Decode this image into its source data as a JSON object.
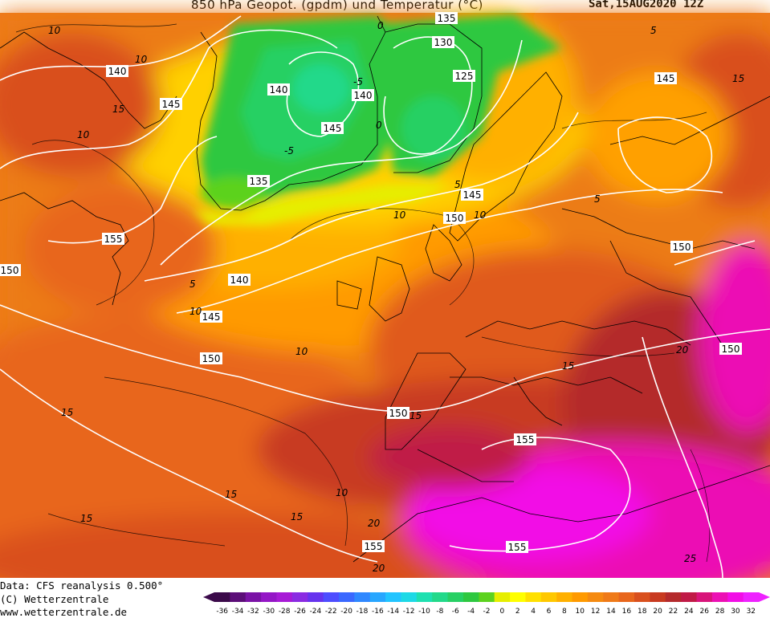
{
  "header": {
    "title": "850 hPa Geopot. (gpdm) und Temperatur (°C)",
    "date": "Sat,15AUG2020 12Z"
  },
  "footer": {
    "data_source": "Data: CFS reanalysis 0.500°",
    "copyright": "(C) Wetterzentrale",
    "website": "www.wetterzentrale.de"
  },
  "colors": {
    "contour_geopotential": "#ffffff",
    "coastline": "#000000"
  },
  "legend": {
    "values": [
      -36,
      -34,
      -32,
      -30,
      -28,
      -26,
      -24,
      -22,
      -20,
      -18,
      -16,
      -14,
      -12,
      -10,
      -8,
      -6,
      -4,
      -2,
      0,
      2,
      4,
      6,
      8,
      10,
      12,
      14,
      16,
      18,
      20,
      22,
      24,
      26,
      28,
      30,
      32
    ],
    "colors": [
      "#3b0a4a",
      "#5c0e78",
      "#7a12a6",
      "#9416c6",
      "#a71ad6",
      "#8a2be2",
      "#6633ee",
      "#4d4dff",
      "#3a68ff",
      "#2f88ff",
      "#28a6ff",
      "#22c4ff",
      "#1dd9e6",
      "#1ee0b0",
      "#22d98a",
      "#27d064",
      "#2ec840",
      "#5cd21e",
      "#e6ee00",
      "#ffff00",
      "#ffe000",
      "#ffc800",
      "#ffb000",
      "#ff9a00",
      "#f58a10",
      "#ef7a18",
      "#e8661c",
      "#d9501e",
      "#c83a20",
      "#b42a2c",
      "#c01a46",
      "#d8147a",
      "#ec10b4",
      "#f20ee6",
      "#ee22ff"
    ]
  },
  "geopotential_labels": [
    {
      "text": "135"
    },
    {
      "text": "130"
    },
    {
      "text": "125"
    },
    {
      "text": "140"
    },
    {
      "text": "140"
    },
    {
      "text": "145"
    },
    {
      "text": "135"
    },
    {
      "text": "140"
    },
    {
      "text": "145"
    },
    {
      "text": "150"
    },
    {
      "text": "140"
    },
    {
      "text": "145"
    },
    {
      "text": "155"
    },
    {
      "text": "150"
    },
    {
      "text": "150"
    },
    {
      "text": "145"
    },
    {
      "text": "150"
    },
    {
      "text": "150"
    },
    {
      "text": "155"
    },
    {
      "text": "155"
    },
    {
      "text": "155"
    },
    {
      "text": "145"
    },
    {
      "text": "150"
    }
  ],
  "temperature_labels": [
    {
      "text": "10"
    },
    {
      "text": "10"
    },
    {
      "text": "15"
    },
    {
      "text": "0"
    },
    {
      "text": "0"
    },
    {
      "text": "-5"
    },
    {
      "text": "-5"
    },
    {
      "text": "5"
    },
    {
      "text": "10"
    },
    {
      "text": "10"
    },
    {
      "text": "10"
    },
    {
      "text": "15"
    },
    {
      "text": "15"
    },
    {
      "text": "15"
    },
    {
      "text": "10"
    },
    {
      "text": "15"
    },
    {
      "text": "20"
    },
    {
      "text": "20"
    },
    {
      "text": "25"
    },
    {
      "text": "15"
    },
    {
      "text": "10"
    },
    {
      "text": "5"
    },
    {
      "text": "15"
    },
    {
      "text": "10"
    },
    {
      "text": "5"
    },
    {
      "text": "5"
    },
    {
      "text": "15"
    },
    {
      "text": "20"
    }
  ]
}
